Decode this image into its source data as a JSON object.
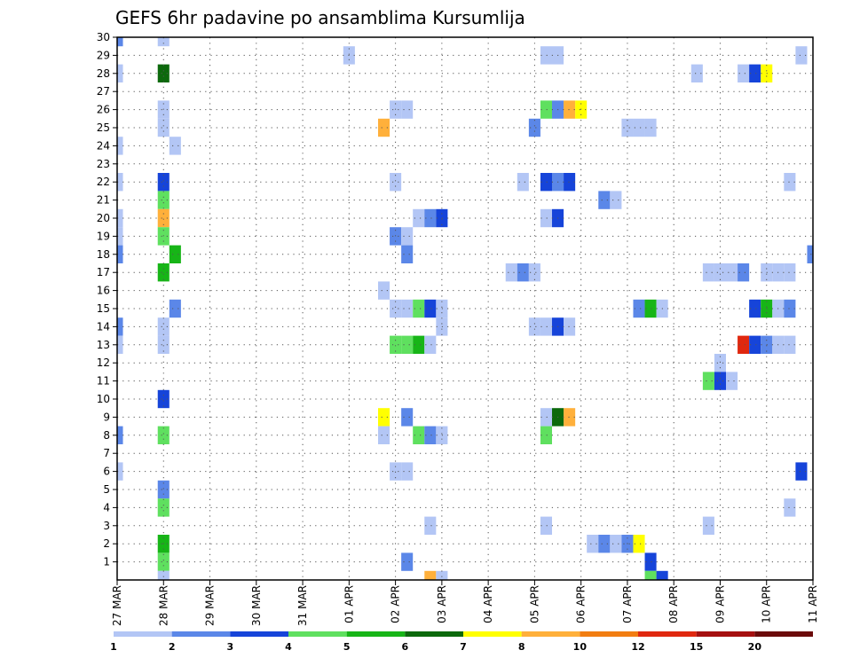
{
  "chart_data": {
    "type": "heatmap",
    "title": "GEFS 6hr padavine po ansamblima Kursumlija",
    "x_ticks": [
      "27 MAR",
      "28 MAR",
      "29 MAR",
      "30 MAR",
      "31 MAR",
      "01 APR",
      "02 APR",
      "03 APR",
      "04 APR",
      "05 APR",
      "06 APR",
      "07 APR",
      "08 APR",
      "09 APR",
      "10 APR",
      "11 APR"
    ],
    "y_ticks": [
      "1",
      "2",
      "3",
      "4",
      "5",
      "6",
      "7",
      "8",
      "9",
      "10",
      "11",
      "12",
      "13",
      "14",
      "15",
      "16",
      "17",
      "18",
      "19",
      "20",
      "21",
      "22",
      "23",
      "24",
      "25",
      "26",
      "27",
      "28",
      "29",
      "30"
    ],
    "x_range_steps": [
      0,
      60
    ],
    "y_range": [
      0,
      30
    ],
    "grid": true,
    "colorbar": {
      "labels": [
        "1",
        "2",
        "3",
        "4",
        "5",
        "6",
        "7",
        "8",
        "10",
        "12",
        "15",
        "20"
      ],
      "colors": [
        "#b3c6f5",
        "#5b87e8",
        "#1644d9",
        "#5fe05f",
        "#17b517",
        "#0c690c",
        "#ffff00",
        "#ffb03b",
        "#f27d11",
        "#e0280f",
        "#a51010",
        "#6b0a0a"
      ]
    },
    "cells": [
      {
        "member": 30,
        "step": 0,
        "c": 1
      },
      {
        "member": 30,
        "step": 4,
        "c": 0
      },
      {
        "member": 29,
        "step": 20,
        "c": 0
      },
      {
        "member": 29,
        "step": 37,
        "c": 0
      },
      {
        "member": 29,
        "step": 38,
        "c": 0
      },
      {
        "member": 29,
        "step": 59,
        "c": 0
      },
      {
        "member": 28,
        "step": 0,
        "c": 0
      },
      {
        "member": 28,
        "step": 4,
        "c": 5
      },
      {
        "member": 28,
        "step": 50,
        "c": 0
      },
      {
        "member": 28,
        "step": 54,
        "c": 0
      },
      {
        "member": 28,
        "step": 55,
        "c": 2
      },
      {
        "member": 28,
        "step": 56,
        "c": 6
      },
      {
        "member": 26,
        "step": 4,
        "c": 0
      },
      {
        "member": 26,
        "step": 24,
        "c": 0
      },
      {
        "member": 26,
        "step": 25,
        "c": 0
      },
      {
        "member": 26,
        "step": 37,
        "c": 3
      },
      {
        "member": 26,
        "step": 38,
        "c": 1
      },
      {
        "member": 26,
        "step": 39,
        "c": 7
      },
      {
        "member": 26,
        "step": 40,
        "c": 6
      },
      {
        "member": 25,
        "step": 4,
        "c": 0
      },
      {
        "member": 25,
        "step": 23,
        "c": 7
      },
      {
        "member": 25,
        "step": 36,
        "c": 1
      },
      {
        "member": 25,
        "step": 44,
        "c": 0
      },
      {
        "member": 25,
        "step": 45,
        "c": 0
      },
      {
        "member": 25,
        "step": 46,
        "c": 0
      },
      {
        "member": 24,
        "step": 0,
        "c": 0
      },
      {
        "member": 24,
        "step": 5,
        "c": 0
      },
      {
        "member": 22,
        "step": 0,
        "c": 0
      },
      {
        "member": 22,
        "step": 4,
        "c": 2
      },
      {
        "member": 22,
        "step": 24,
        "c": 0
      },
      {
        "member": 22,
        "step": 35,
        "c": 0
      },
      {
        "member": 22,
        "step": 37,
        "c": 2
      },
      {
        "member": 22,
        "step": 38,
        "c": 1
      },
      {
        "member": 22,
        "step": 39,
        "c": 2
      },
      {
        "member": 22,
        "step": 58,
        "c": 0
      },
      {
        "member": 21,
        "step": 4,
        "c": 3
      },
      {
        "member": 21,
        "step": 42,
        "c": 1
      },
      {
        "member": 21,
        "step": 43,
        "c": 0
      },
      {
        "member": 20,
        "step": 0,
        "c": 0
      },
      {
        "member": 20,
        "step": 4,
        "c": 7
      },
      {
        "member": 20,
        "step": 26,
        "c": 0
      },
      {
        "member": 20,
        "step": 27,
        "c": 1
      },
      {
        "member": 20,
        "step": 28,
        "c": 2
      },
      {
        "member": 20,
        "step": 37,
        "c": 0
      },
      {
        "member": 20,
        "step": 38,
        "c": 2
      },
      {
        "member": 19,
        "step": 0,
        "c": 0
      },
      {
        "member": 19,
        "step": 4,
        "c": 3
      },
      {
        "member": 19,
        "step": 24,
        "c": 1
      },
      {
        "member": 19,
        "step": 25,
        "c": 0
      },
      {
        "member": 18,
        "step": 0,
        "c": 1
      },
      {
        "member": 18,
        "step": 5,
        "c": 4
      },
      {
        "member": 18,
        "step": 25,
        "c": 1
      },
      {
        "member": 18,
        "step": 60,
        "c": 1
      },
      {
        "member": 17,
        "step": 4,
        "c": 4
      },
      {
        "member": 17,
        "step": 34,
        "c": 0
      },
      {
        "member": 17,
        "step": 35,
        "c": 1
      },
      {
        "member": 17,
        "step": 36,
        "c": 0
      },
      {
        "member": 17,
        "step": 51,
        "c": 0
      },
      {
        "member": 17,
        "step": 52,
        "c": 0
      },
      {
        "member": 17,
        "step": 53,
        "c": 0
      },
      {
        "member": 17,
        "step": 54,
        "c": 1
      },
      {
        "member": 17,
        "step": 56,
        "c": 0
      },
      {
        "member": 17,
        "step": 57,
        "c": 0
      },
      {
        "member": 17,
        "step": 58,
        "c": 0
      },
      {
        "member": 16,
        "step": 23,
        "c": 0
      },
      {
        "member": 15,
        "step": 5,
        "c": 1
      },
      {
        "member": 15,
        "step": 24,
        "c": 0
      },
      {
        "member": 15,
        "step": 25,
        "c": 0
      },
      {
        "member": 15,
        "step": 26,
        "c": 3
      },
      {
        "member": 15,
        "step": 27,
        "c": 2
      },
      {
        "member": 15,
        "step": 28,
        "c": 0
      },
      {
        "member": 15,
        "step": 45,
        "c": 1
      },
      {
        "member": 15,
        "step": 46,
        "c": 4
      },
      {
        "member": 15,
        "step": 47,
        "c": 0
      },
      {
        "member": 15,
        "step": 55,
        "c": 2
      },
      {
        "member": 15,
        "step": 56,
        "c": 4
      },
      {
        "member": 15,
        "step": 57,
        "c": 0
      },
      {
        "member": 15,
        "step": 58,
        "c": 1
      },
      {
        "member": 14,
        "step": 0,
        "c": 1
      },
      {
        "member": 14,
        "step": 4,
        "c": 0
      },
      {
        "member": 14,
        "step": 28,
        "c": 0
      },
      {
        "member": 14,
        "step": 36,
        "c": 0
      },
      {
        "member": 14,
        "step": 37,
        "c": 0
      },
      {
        "member": 14,
        "step": 38,
        "c": 2
      },
      {
        "member": 14,
        "step": 39,
        "c": 0
      },
      {
        "member": 13,
        "step": 0,
        "c": 0
      },
      {
        "member": 13,
        "step": 4,
        "c": 0
      },
      {
        "member": 13,
        "step": 24,
        "c": 3
      },
      {
        "member": 13,
        "step": 25,
        "c": 3
      },
      {
        "member": 13,
        "step": 26,
        "c": 4
      },
      {
        "member": 13,
        "step": 27,
        "c": 0
      },
      {
        "member": 13,
        "step": 54,
        "c": 9
      },
      {
        "member": 13,
        "step": 55,
        "c": 2
      },
      {
        "member": 13,
        "step": 56,
        "c": 1
      },
      {
        "member": 13,
        "step": 57,
        "c": 0
      },
      {
        "member": 13,
        "step": 58,
        "c": 0
      },
      {
        "member": 12,
        "step": 52,
        "c": 0
      },
      {
        "member": 11,
        "step": 51,
        "c": 3
      },
      {
        "member": 11,
        "step": 52,
        "c": 2
      },
      {
        "member": 11,
        "step": 53,
        "c": 0
      },
      {
        "member": 10,
        "step": 4,
        "c": 2
      },
      {
        "member": 9,
        "step": 23,
        "c": 6
      },
      {
        "member": 9,
        "step": 25,
        "c": 1
      },
      {
        "member": 9,
        "step": 37,
        "c": 0
      },
      {
        "member": 9,
        "step": 38,
        "c": 5
      },
      {
        "member": 9,
        "step": 39,
        "c": 7
      },
      {
        "member": 8,
        "step": 0,
        "c": 1
      },
      {
        "member": 8,
        "step": 4,
        "c": 3
      },
      {
        "member": 8,
        "step": 23,
        "c": 0
      },
      {
        "member": 8,
        "step": 26,
        "c": 3
      },
      {
        "member": 8,
        "step": 27,
        "c": 1
      },
      {
        "member": 8,
        "step": 28,
        "c": 0
      },
      {
        "member": 8,
        "step": 37,
        "c": 3
      },
      {
        "member": 6,
        "step": 0,
        "c": 0
      },
      {
        "member": 6,
        "step": 24,
        "c": 0
      },
      {
        "member": 6,
        "step": 25,
        "c": 0
      },
      {
        "member": 6,
        "step": 59,
        "c": 2
      },
      {
        "member": 5,
        "step": 4,
        "c": 1
      },
      {
        "member": 4,
        "step": 4,
        "c": 3
      },
      {
        "member": 4,
        "step": 58,
        "c": 0
      },
      {
        "member": 3,
        "step": 27,
        "c": 0
      },
      {
        "member": 3,
        "step": 37,
        "c": 0
      },
      {
        "member": 3,
        "step": 51,
        "c": 0
      },
      {
        "member": 2,
        "step": 4,
        "c": 4
      },
      {
        "member": 2,
        "step": 41,
        "c": 0
      },
      {
        "member": 2,
        "step": 42,
        "c": 1
      },
      {
        "member": 2,
        "step": 43,
        "c": 0
      },
      {
        "member": 2,
        "step": 44,
        "c": 1
      },
      {
        "member": 2,
        "step": 45,
        "c": 6
      },
      {
        "member": 1,
        "step": 4,
        "c": 3
      },
      {
        "member": 1,
        "step": 25,
        "c": 1
      },
      {
        "member": 1,
        "step": 46,
        "c": 2
      },
      {
        "member": 0,
        "step": 4,
        "c": 0
      },
      {
        "member": 0,
        "step": 27,
        "c": 7
      },
      {
        "member": 0,
        "step": 28,
        "c": 0
      },
      {
        "member": 0,
        "step": 46,
        "c": 3
      },
      {
        "member": 0,
        "step": 47,
        "c": 2
      }
    ]
  }
}
